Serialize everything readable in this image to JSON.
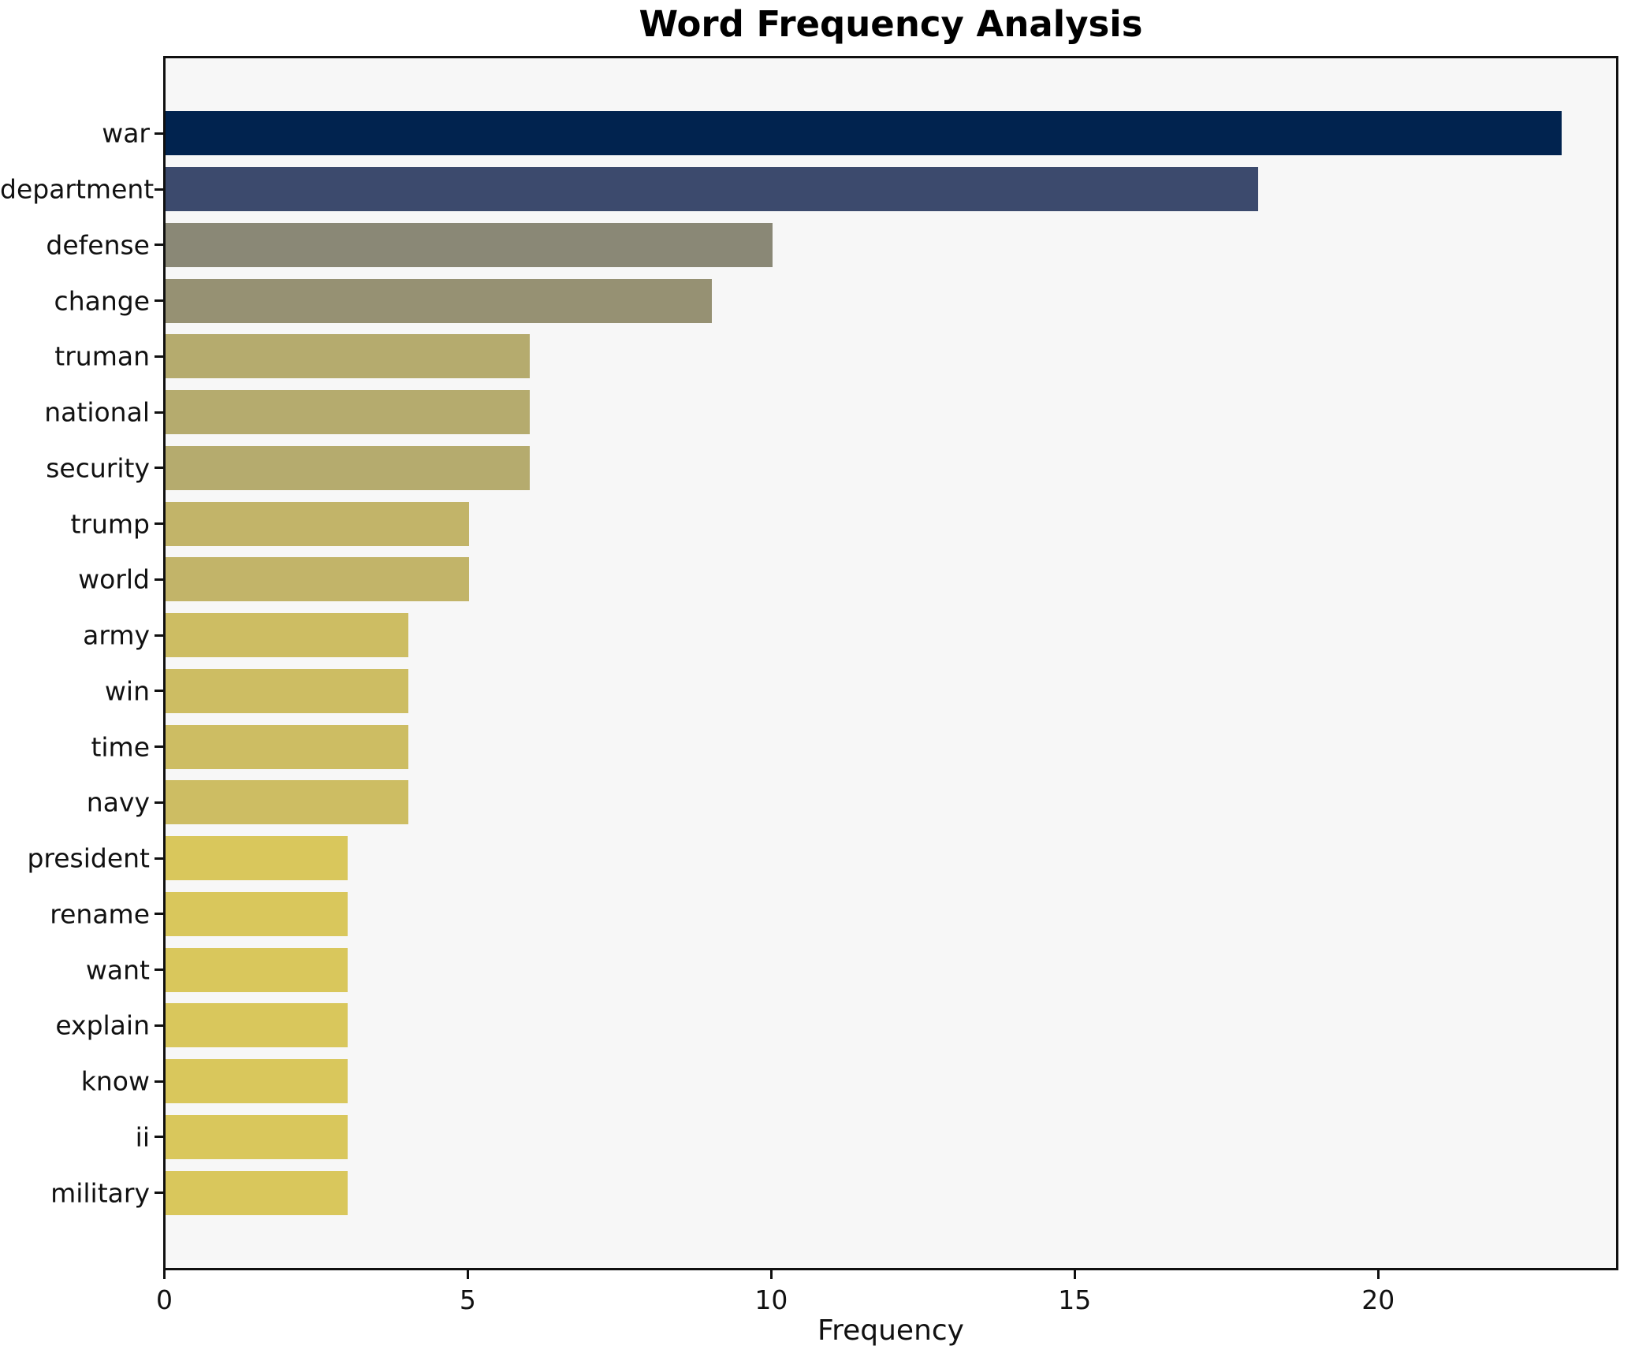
{
  "figure": {
    "background_color": "#ffffff",
    "plot_background_color": "#f7f7f7",
    "spine_color": "#101010",
    "text_color": "#111111"
  },
  "chart_data": {
    "type": "bar",
    "orientation": "horizontal",
    "title": "Word Frequency Analysis",
    "xlabel": "Frequency",
    "ylabel": "",
    "categories": [
      "war",
      "department",
      "defense",
      "change",
      "truman",
      "national",
      "security",
      "trump",
      "world",
      "army",
      "win",
      "time",
      "navy",
      "president",
      "rename",
      "want",
      "explain",
      "know",
      "ii",
      "military"
    ],
    "values": [
      23,
      18,
      10,
      9,
      6,
      6,
      6,
      5,
      5,
      4,
      4,
      4,
      4,
      3,
      3,
      3,
      3,
      3,
      3,
      3
    ],
    "bar_colors": [
      "#01234f",
      "#3c4a6d",
      "#8a8876",
      "#969173",
      "#b5ab6e",
      "#b5ab6e",
      "#b5ab6e",
      "#c2b469",
      "#c2b469",
      "#cdbd63",
      "#cdbd63",
      "#cdbd63",
      "#cdbd63",
      "#d9c75c",
      "#d9c75c",
      "#d9c75c",
      "#d9c75c",
      "#d9c75c",
      "#d9c75c",
      "#d9c75c"
    ],
    "xlim": [
      0,
      23.9
    ],
    "xticks": [
      0,
      5,
      10,
      15,
      20
    ],
    "xtick_labels": [
      "0",
      "5",
      "10",
      "15",
      "20"
    ],
    "grid": false,
    "legend": null
  }
}
